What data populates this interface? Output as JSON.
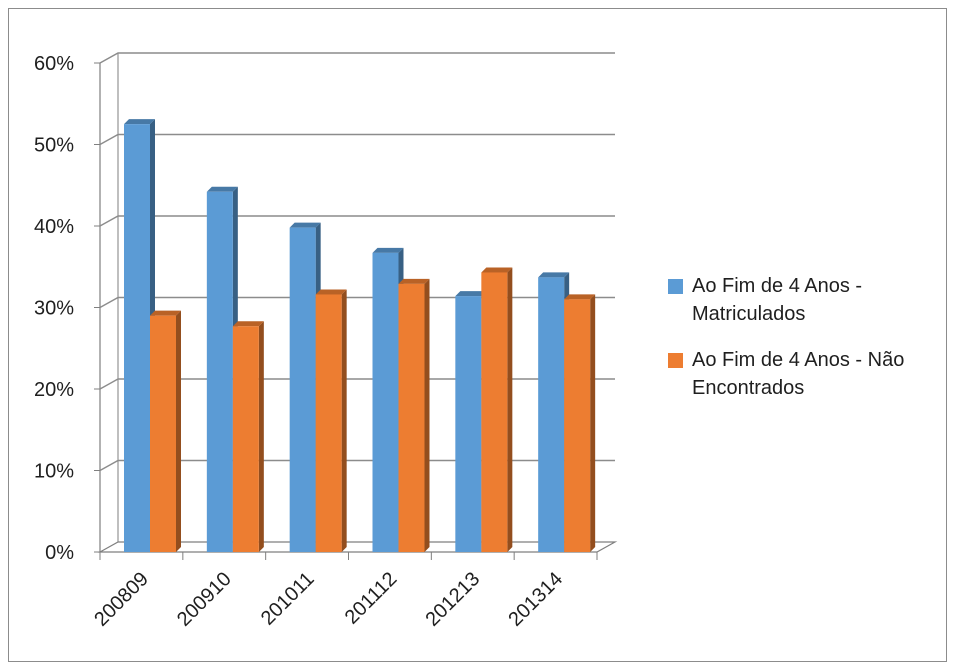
{
  "chart_data": {
    "type": "bar",
    "categories": [
      "200809",
      "200910",
      "201011",
      "201112",
      "201213",
      "201314"
    ],
    "series": [
      {
        "name": "Ao Fim de 4 Anos - Matriculados",
        "color": "#5b9bd5",
        "values": [
          52.5,
          44.2,
          39.8,
          36.7,
          31.4,
          33.7
        ]
      },
      {
        "name": "Ao Fim de 4 Anos - Não Encontrados",
        "color": "#ed7d31",
        "values": [
          29.0,
          27.7,
          31.6,
          32.9,
          34.3,
          31.0
        ]
      }
    ],
    "ylim": [
      0,
      60
    ],
    "yticks": [
      0,
      10,
      20,
      30,
      40,
      50,
      60
    ],
    "ytick_labels": [
      "0%",
      "10%",
      "20%",
      "30%",
      "40%",
      "50%",
      "60%"
    ],
    "grid": true,
    "legend_position": "right",
    "style": "3d-clustered-columns"
  }
}
